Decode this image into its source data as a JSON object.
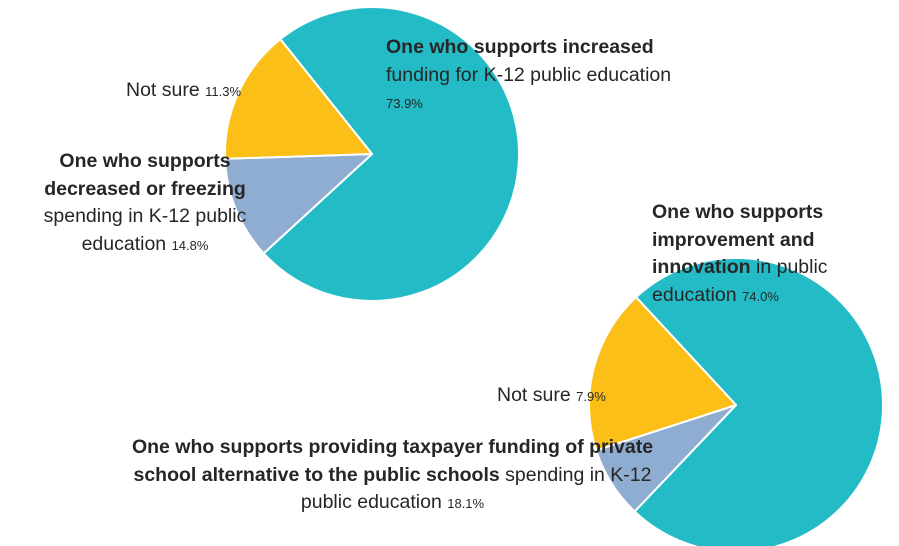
{
  "chart_data": [
    {
      "type": "pie",
      "colors": [
        "#23bcc6",
        "#8fadd1",
        "#fbbf17"
      ],
      "slices": [
        {
          "bold": "One who supports increased",
          "rest": "funding for K-12 public education",
          "value": 73.9,
          "label": "73.9%"
        },
        {
          "bold": "",
          "rest": "Not sure",
          "value": 11.3,
          "label": "11.3%"
        },
        {
          "bold": "One who supports decreased or freezing",
          "rest": "spending in K-12 public education",
          "value": 14.8,
          "label": "14.8%"
        }
      ]
    },
    {
      "type": "pie",
      "colors": [
        "#23bcc6",
        "#8fadd1",
        "#fbbf17"
      ],
      "slices": [
        {
          "bold": "One who supports improvement and innovation",
          "rest": "in public education",
          "value": 74.0,
          "label": "74.0%"
        },
        {
          "bold": "",
          "rest": "Not sure",
          "value": 7.9,
          "label": "7.9%"
        },
        {
          "bold": "One who supports providing taxpayer funding of private school alternative to the public schools",
          "rest": "spending in K-12 public education",
          "value": 18.1,
          "label": "18.1%"
        }
      ]
    }
  ]
}
